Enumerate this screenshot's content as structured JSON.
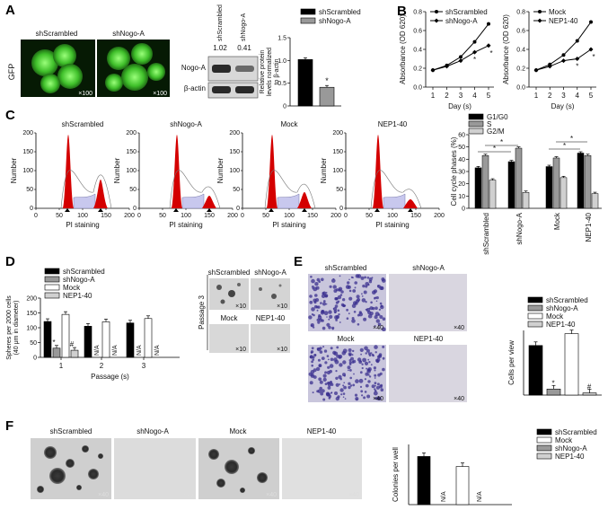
{
  "panel_labels": [
    "A",
    "B",
    "C",
    "D",
    "E",
    "F"
  ],
  "A": {
    "side_label": "GFP",
    "image_titles": [
      "shScrambled",
      "shNogo-A"
    ],
    "magnification": "×100",
    "blot": {
      "lanes": [
        "shScrambled",
        "shNogo-A"
      ],
      "ratios": [
        "1.02",
        "0.41"
      ],
      "rows": [
        "Nogo-A",
        "β-actin"
      ]
    }
  },
  "bars_text": {
    "asterisk": "*",
    "hash": "#",
    "na": "N/A"
  },
  "B_ylabel": "Absorbance (OD 620)",
  "B_xlabel": "Day (s)",
  "C_hist": {
    "ylabel": "Number",
    "xlabel": "PI staining",
    "titles": [
      "shScrambled",
      "shNogo-A",
      "Mock",
      "NEP1-40"
    ],
    "yticks": [
      "0",
      "50",
      "100",
      "150",
      "200"
    ],
    "xticks": [
      "0",
      "50",
      "100",
      "150",
      "200"
    ]
  },
  "D_photos": {
    "side_label": "Passage 3",
    "titles": [
      "shScrambled",
      "shNogo-A",
      "Mock",
      "NEP1-40"
    ],
    "magnification": "×10"
  },
  "E_photos": {
    "titles": [
      "shScrambled",
      "shNogo-A",
      "Mock",
      "NEP1-40"
    ],
    "magnification": "×40"
  },
  "F_photos": {
    "titles": [
      "shScrambled",
      "shNogo-A",
      "Mock",
      "NEP1-40"
    ],
    "magnification": "×40"
  },
  "colors": {
    "black": "#000000",
    "gray": "#999999",
    "white": "#ffffff",
    "lightgray": "#d0d0d0",
    "peak_red": "#d40000",
    "sphase_blue": "#c8c8ee"
  },
  "chart_data": [
    {
      "id": "A-western",
      "type": "bar",
      "ylabel": "Relative protein levels normalized to β-actin",
      "legend": [
        "shScrambled",
        "shNogo-A"
      ],
      "ylim": [
        0,
        1.5
      ],
      "yticks": [
        "0",
        "0.5",
        "1.0",
        "1.5"
      ],
      "series": [
        {
          "name": "shScrambled",
          "values": [
            1.02
          ]
        },
        {
          "name": "shNogo-A",
          "values": [
            0.41
          ]
        }
      ]
    },
    {
      "id": "B-left",
      "type": "line",
      "ylabel": "Absorbance (OD 620)",
      "xlabel": "Day (s)",
      "x": [
        1,
        2,
        3,
        4,
        5
      ],
      "ylim": [
        0,
        0.8
      ],
      "yticks": [
        "0.0",
        "0.2",
        "0.4",
        "0.6",
        "0.8"
      ],
      "series": [
        {
          "name": "shScrambled",
          "values": [
            0.18,
            0.23,
            0.32,
            0.48,
            0.67
          ]
        },
        {
          "name": "shNogo-A",
          "values": [
            0.18,
            0.22,
            0.28,
            0.37,
            0.44
          ]
        }
      ]
    },
    {
      "id": "B-right",
      "type": "line",
      "ylabel": "Absorbance (OD 620)",
      "xlabel": "Day (s)",
      "x": [
        1,
        2,
        3,
        4,
        5
      ],
      "ylim": [
        0,
        0.8
      ],
      "yticks": [
        "0.0",
        "0.2",
        "0.4",
        "0.6",
        "0.8"
      ],
      "series": [
        {
          "name": "Mock",
          "values": [
            0.18,
            0.24,
            0.34,
            0.49,
            0.69
          ]
        },
        {
          "name": "NEP1-40",
          "values": [
            0.18,
            0.22,
            0.28,
            0.3,
            0.4
          ]
        }
      ]
    },
    {
      "id": "C-cellcycle",
      "type": "bar",
      "ylabel": "Cell cycle phases (%)",
      "categories": [
        "shScrambled",
        "shNogo-A",
        "Mock",
        "NEP1-40"
      ],
      "legend": [
        "G1/G0",
        "S",
        "G2/M"
      ],
      "ylim": [
        0,
        60
      ],
      "yticks": [
        "0",
        "10",
        "20",
        "30",
        "40",
        "50",
        "60"
      ],
      "series": [
        {
          "name": "G1/G0",
          "values": [
            33,
            38,
            34,
            45
          ]
        },
        {
          "name": "S",
          "values": [
            43,
            49,
            41,
            43
          ]
        },
        {
          "name": "G2/M",
          "values": [
            23,
            13,
            25,
            12
          ]
        }
      ]
    },
    {
      "id": "D-spheres",
      "type": "bar",
      "ylabel": "Spheres per 2000 cells (40 μm in diameter)",
      "xlabel": "Passage (s)",
      "categories": [
        "1",
        "2",
        "3"
      ],
      "legend": [
        "shScrambled",
        "shNogo-A",
        "Mock",
        "NEP1-40"
      ],
      "ylim": [
        0,
        200
      ],
      "yticks": [
        "0",
        "50",
        "100",
        "150",
        "200"
      ],
      "series": [
        {
          "name": "shScrambled",
          "values": [
            121,
            105,
            116
          ]
        },
        {
          "name": "shNogo-A",
          "values": [
            31,
            null,
            null
          ]
        },
        {
          "name": "Mock",
          "values": [
            145,
            120,
            131
          ]
        },
        {
          "name": "NEP1-40",
          "values": [
            24,
            null,
            null
          ]
        }
      ]
    },
    {
      "id": "E-cells",
      "type": "bar",
      "ylabel": "Cells per view",
      "legend": [
        "shScrambled",
        "shNogo-A",
        "Mock",
        "NEP1-40"
      ],
      "ylim": [
        0,
        300
      ],
      "series": [
        {
          "name": "shScrambled",
          "values": [
            230
          ]
        },
        {
          "name": "shNogo-A",
          "values": [
            28
          ]
        },
        {
          "name": "Mock",
          "values": [
            285
          ]
        },
        {
          "name": "NEP1-40",
          "values": [
            10
          ]
        }
      ]
    },
    {
      "id": "F-colonies",
      "type": "bar",
      "ylabel": "Colonies per well",
      "legend": [
        "shScrambled",
        "Mock",
        "shNogo-A",
        "NEP1-40"
      ],
      "ylim": [
        0,
        30
      ],
      "series": [
        {
          "name": "shScrambled",
          "values": [
            24
          ]
        },
        {
          "name": "Mock",
          "values": [
            19
          ]
        },
        {
          "name": "shNogo-A",
          "values": [
            null
          ]
        },
        {
          "name": "NEP1-40",
          "values": [
            null
          ]
        }
      ]
    }
  ]
}
